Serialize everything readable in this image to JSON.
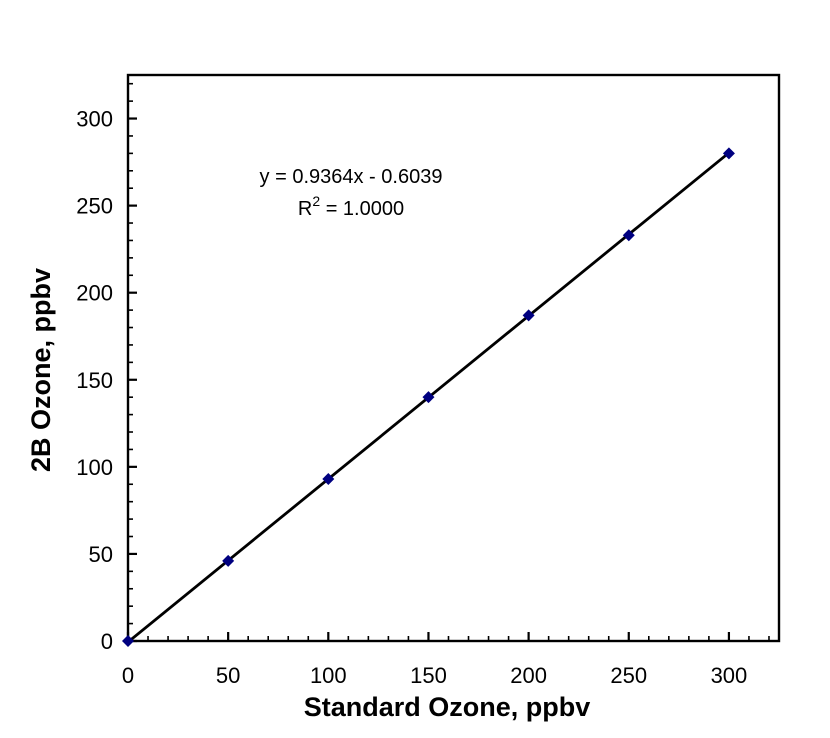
{
  "chart_data": {
    "type": "scatter",
    "title": "",
    "xlabel": "Standard Ozone, ppbv",
    "ylabel": "2B Ozone, ppbv",
    "x": [
      0,
      50,
      100,
      150,
      200,
      250,
      300
    ],
    "y": [
      0,
      46,
      93,
      140,
      187,
      233,
      280
    ],
    "xlim": [
      0,
      325
    ],
    "ylim": [
      0,
      325
    ],
    "x_major_ticks": [
      0,
      50,
      100,
      150,
      200,
      250,
      300
    ],
    "y_major_ticks": [
      0,
      50,
      100,
      150,
      200,
      250,
      300
    ],
    "minor_tick_step": 10,
    "grid": false,
    "legend": null,
    "marker": {
      "shape": "diamond",
      "color": "#000080",
      "size": 12
    },
    "trendline": {
      "slope": 0.9364,
      "intercept": -0.6039,
      "color": "#000000"
    },
    "annotation": {
      "equation": "y = 0.9364x - 0.6039",
      "r_base": "R",
      "r_exponent": "2",
      "r_value": " = 1.0000"
    },
    "colors": {
      "axis": "#000000",
      "text": "#000000",
      "background": "#FFFFFF"
    }
  }
}
